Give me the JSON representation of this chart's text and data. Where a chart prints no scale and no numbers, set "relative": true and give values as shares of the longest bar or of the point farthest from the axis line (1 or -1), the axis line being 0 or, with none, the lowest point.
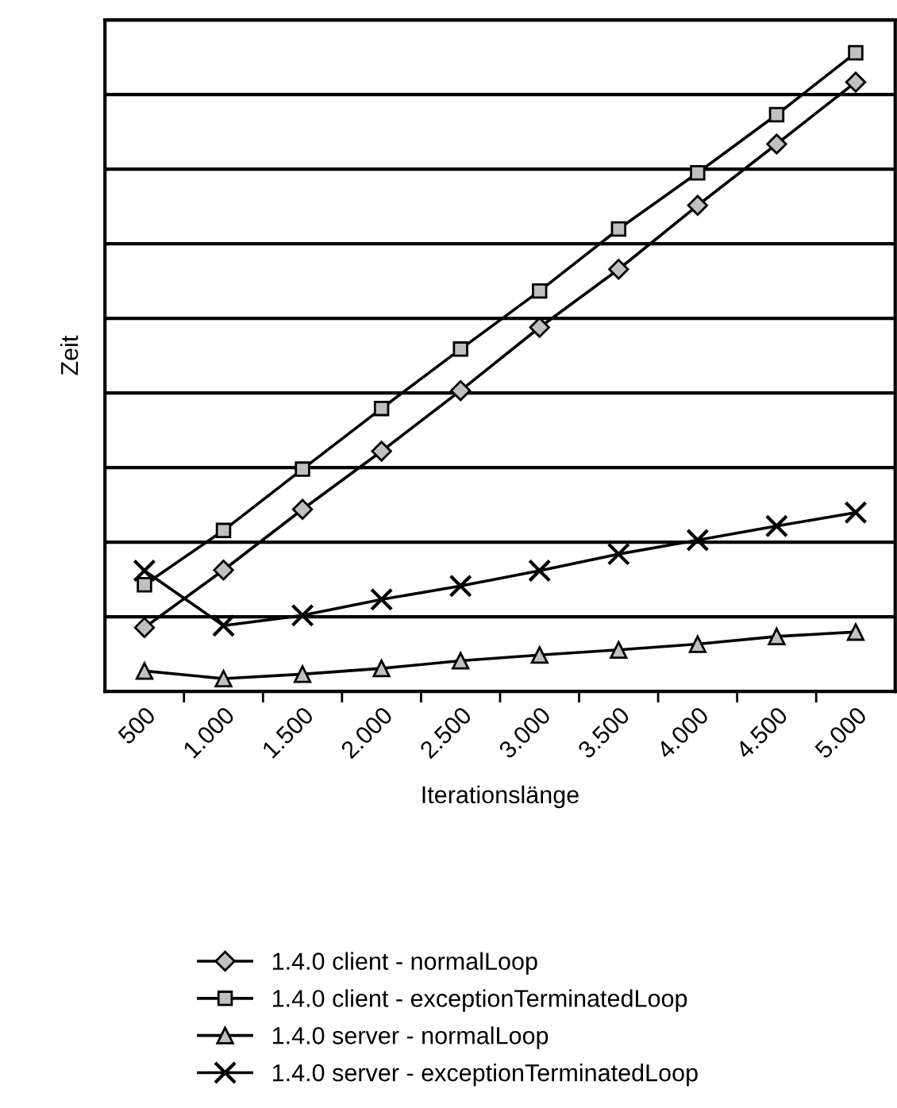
{
  "chart_data": {
    "type": "line",
    "xlabel": "Iterationslänge",
    "ylabel": "Zeit",
    "relative": true,
    "grid": "y",
    "legend": "bottom",
    "categories": [
      "500",
      "1.000",
      "1.500",
      "2.000",
      "2.500",
      "3.000",
      "3.500",
      "4.000",
      "4.500",
      "5.000"
    ],
    "series": [
      {
        "name": "1.4.0 client - normalLoop",
        "color": "#000000",
        "marker": "diamond",
        "values": [
          0.1,
          0.19,
          0.285,
          0.376,
          0.471,
          0.57,
          0.661,
          0.761,
          0.857,
          0.954
        ]
      },
      {
        "name": "1.4.0 client - exceptionTerminatedLoop",
        "color": "#000000",
        "marker": "square",
        "values": [
          0.167,
          0.252,
          0.348,
          0.443,
          0.536,
          0.627,
          0.724,
          0.812,
          0.903,
          1
        ]
      },
      {
        "name": "1.4.0 server - normalLoop",
        "color": "#000000",
        "marker": "triangle",
        "values": [
          0.032,
          0.02,
          0.027,
          0.036,
          0.048,
          0.057,
          0.065,
          0.074,
          0.086,
          0.093
        ]
      },
      {
        "name": "1.4.0 server - exceptionTerminatedLoop",
        "color": "#000000",
        "marker": "cross",
        "values": [
          0.189,
          0.103,
          0.119,
          0.144,
          0.165,
          0.189,
          0.215,
          0.237,
          0.259,
          0.28
        ]
      }
    ]
  }
}
